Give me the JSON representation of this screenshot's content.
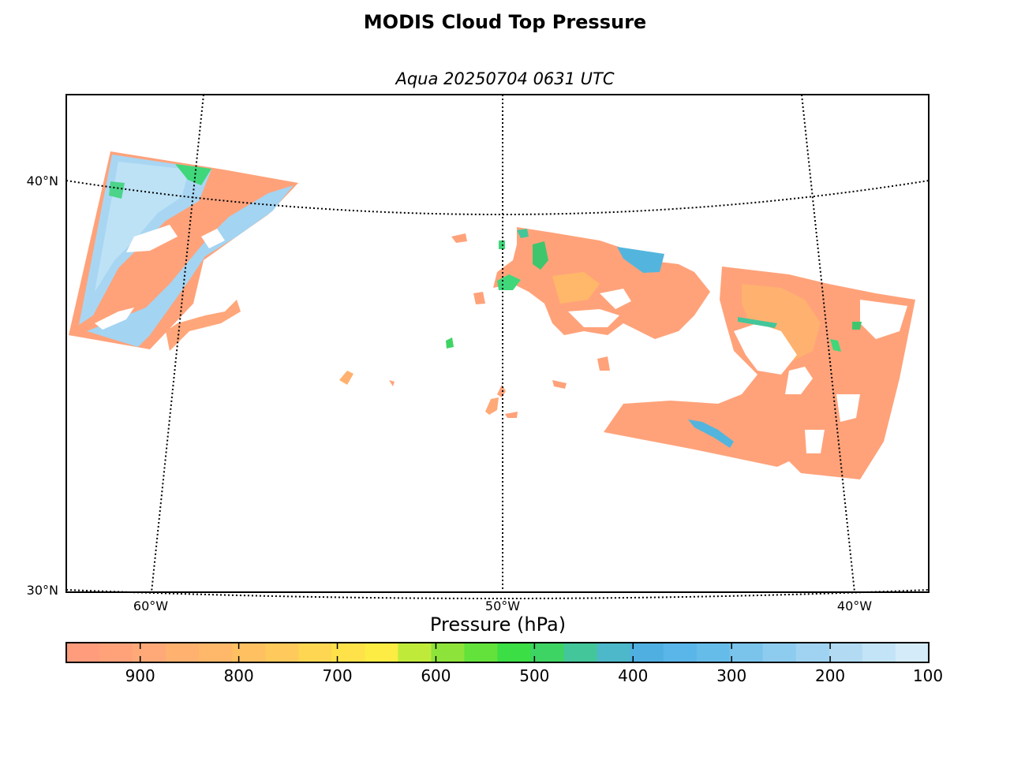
{
  "title": "MODIS Cloud Top Pressure",
  "subtitle": "Aqua 20250704 0631 UTC",
  "map": {
    "lat_labels": [
      "40°N",
      "30°N"
    ],
    "lon_labels": [
      "60°W",
      "50°W",
      "40°W"
    ],
    "gridline_style": "dotted"
  },
  "colorbar": {
    "title": "Pressure (hPa)",
    "tick_labels": [
      "900",
      "800",
      "700",
      "600",
      "500",
      "400",
      "300",
      "200",
      "100"
    ],
    "colors": [
      "#ff9c7c",
      "#ffa27a",
      "#ffa978",
      "#ffb16f",
      "#ffb86a",
      "#ffc062",
      "#ffc95b",
      "#ffd652",
      "#ffe24a",
      "#fdec43",
      "#c0ea3a",
      "#8ee33a",
      "#62e23b",
      "#3bde44",
      "#3ed463",
      "#43c69a",
      "#4cb8c9",
      "#4fafe0",
      "#5ab5e8",
      "#66bce9",
      "#7ac4eb",
      "#8dccef",
      "#a0d3f1",
      "#b2dbf3",
      "#c3e4f6",
      "#d4ebf9"
    ]
  },
  "chart_data": {
    "type": "heatmap",
    "variable": "Cloud Top Pressure",
    "units": "hPa",
    "colorbar_range": [
      100,
      975
    ],
    "colorbar_ticks": [
      900,
      800,
      700,
      600,
      500,
      400,
      300,
      200,
      100
    ],
    "lat_gridlines": [
      40,
      30
    ],
    "lon_gridlines": [
      -60,
      -50,
      -40
    ],
    "grid": true
  }
}
